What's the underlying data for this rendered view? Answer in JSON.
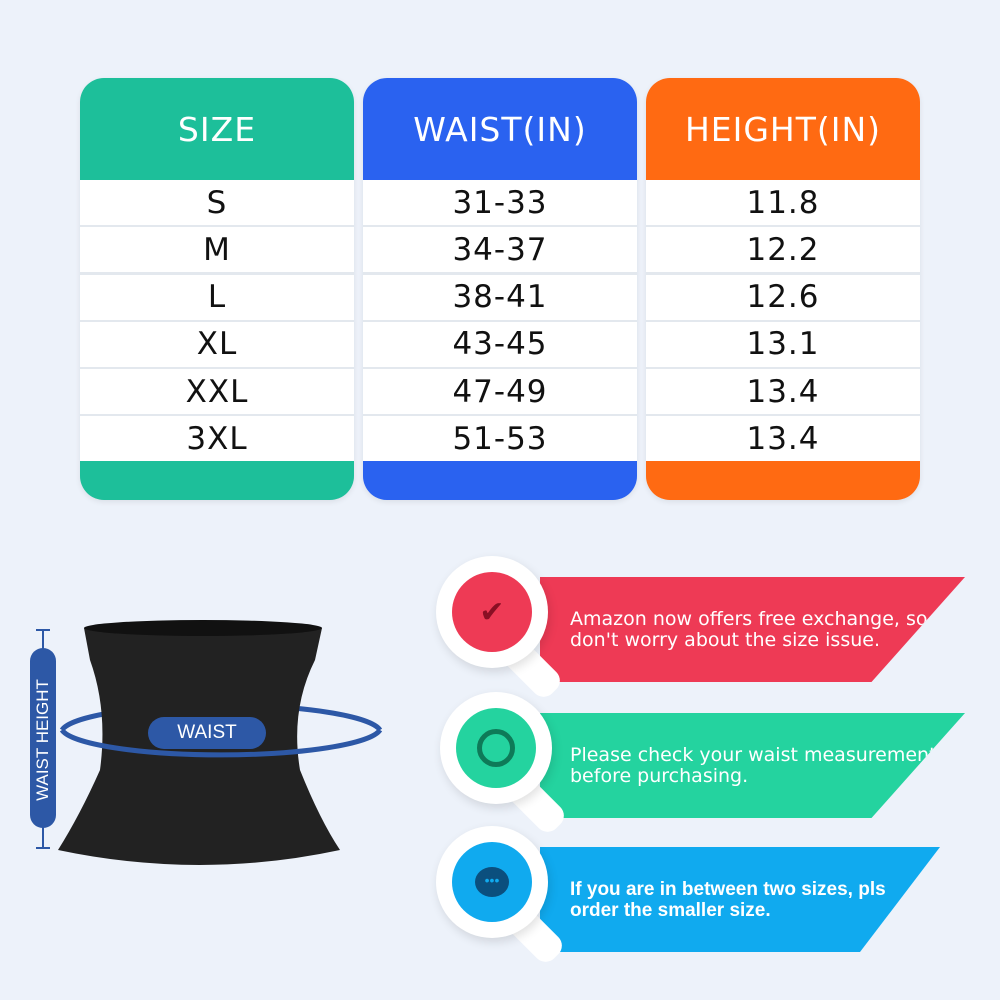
{
  "size_table": {
    "columns": [
      {
        "header": "SIZE",
        "color": "#1dbf9a",
        "values": [
          "S",
          "M",
          "L",
          "XL",
          "XXL",
          "3XL"
        ]
      },
      {
        "header": "WAIST(IN)",
        "color": "#2a62f0",
        "values": [
          "31-33",
          "34-37",
          "38-41",
          "43-45",
          "47-49",
          "51-53"
        ]
      },
      {
        "header": "HEIGHT(IN)",
        "color": "#ff6a12",
        "values": [
          "11.8",
          "12.2",
          "12.6",
          "13.1",
          "13.4",
          "13.4"
        ]
      }
    ]
  },
  "diagram": {
    "waist_label": "WAIST",
    "height_label": "WAIST HEIGHT",
    "accent": "#2d58a6"
  },
  "tips": [
    {
      "icon": "lightbulb-check-icon",
      "color": "#ee3a55",
      "text": "Amazon now offers free exchange, so don't worry about the size issue."
    },
    {
      "icon": "clock-icon",
      "color": "#24d39f",
      "text": "Please check your waist measurement before purchasing."
    },
    {
      "icon": "chat-bubble-icon",
      "color": "#10aaef",
      "text": "If you are in between two sizes, pls order the smaller size."
    }
  ]
}
